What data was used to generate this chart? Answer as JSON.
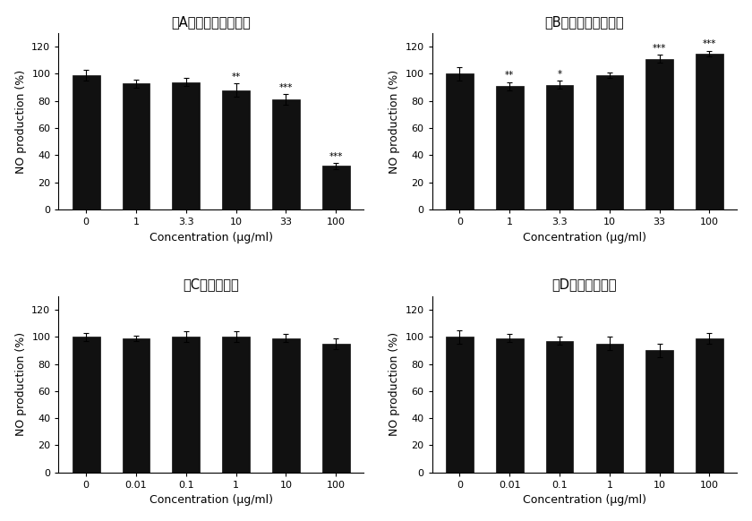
{
  "panels": [
    {
      "title": "（A）ノニ種子エキス",
      "x_labels": [
        "0",
        "1",
        "3.3",
        "10",
        "33",
        "100"
      ],
      "values": [
        99,
        93,
        94,
        88,
        81,
        32
      ],
      "errors": [
        4,
        3,
        3,
        5,
        4,
        2
      ],
      "annotations": [
        "",
        "",
        "",
        "**",
        "***",
        "***"
      ],
      "xlabel": "Concentration (μg/ml)",
      "ylabel": "NO production (%)",
      "ylim": [
        0,
        130
      ],
      "yticks": [
        0,
        20,
        40,
        60,
        80,
        100,
        120
      ]
    },
    {
      "title": "（B）ノニ種子オイル",
      "x_labels": [
        "0",
        "1",
        "3.3",
        "10",
        "33",
        "100"
      ],
      "values": [
        100,
        91,
        92,
        99,
        111,
        115
      ],
      "errors": [
        5,
        3,
        3,
        2,
        3,
        2
      ],
      "annotations": [
        "",
        "**",
        "*",
        "",
        "***",
        "***"
      ],
      "xlabel": "Concentration (μg/ml)",
      "ylabel": "NO production (%)",
      "ylim": [
        0,
        130
      ],
      "yticks": [
        0,
        20,
        40,
        60,
        80,
        100,
        120
      ]
    },
    {
      "title": "（C）葉エキス",
      "x_labels": [
        "0",
        "0.01",
        "0.1",
        "1",
        "10",
        "100"
      ],
      "values": [
        100,
        99,
        100,
        100,
        99,
        95
      ],
      "errors": [
        3,
        2,
        4,
        4,
        3,
        4
      ],
      "annotations": [
        "",
        "",
        "",
        "",
        "",
        ""
      ],
      "xlabel": "Concentration (μg/ml)",
      "ylabel": "NO production (%)",
      "ylim": [
        0,
        130
      ],
      "yticks": [
        0,
        20,
        40,
        60,
        80,
        100,
        120
      ]
    },
    {
      "title": "（D）果実エキス",
      "x_labels": [
        "0",
        "0.01",
        "0.1",
        "1",
        "10",
        "100"
      ],
      "values": [
        100,
        99,
        97,
        95,
        90,
        99
      ],
      "errors": [
        5,
        3,
        3,
        5,
        5,
        4
      ],
      "annotations": [
        "",
        "",
        "",
        "",
        "",
        ""
      ],
      "xlabel": "Concentration (μg/ml)",
      "ylabel": "NO production (%)",
      "ylim": [
        0,
        130
      ],
      "yticks": [
        0,
        20,
        40,
        60,
        80,
        100,
        120
      ]
    }
  ],
  "bar_color": "#111111",
  "bar_width": 0.55,
  "title_fontsize": 10.5,
  "label_fontsize": 9,
  "tick_fontsize": 8,
  "annot_fontsize": 7.5,
  "background_color": "#ffffff"
}
